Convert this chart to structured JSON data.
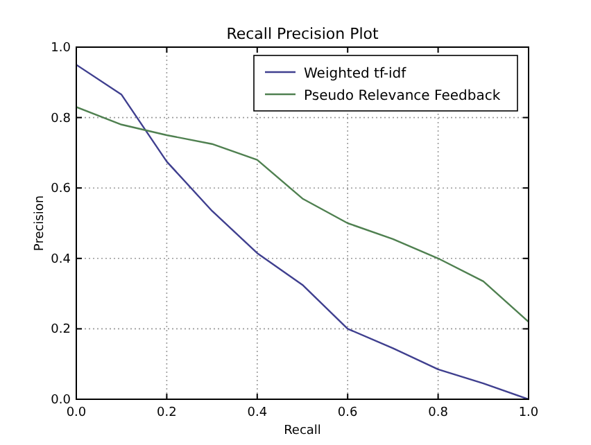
{
  "chart_data": {
    "type": "line",
    "title": "Recall Precision Plot",
    "xlabel": "Recall",
    "ylabel": "Precision",
    "x": [
      0,
      0.1,
      0.2,
      0.3,
      0.4,
      0.5,
      0.6,
      0.7,
      0.8,
      0.9,
      1.0
    ],
    "series": [
      {
        "name": "Weighted tf-idf",
        "color": "#3f3f8f",
        "values": [
          0.95,
          0.865,
          0.675,
          0.535,
          0.415,
          0.325,
          0.2,
          0.145,
          0.085,
          0.045,
          0.0
        ]
      },
      {
        "name": "Pseudo Relevance Feedback",
        "color": "#4f8050",
        "values": [
          0.83,
          0.78,
          0.75,
          0.725,
          0.68,
          0.57,
          0.5,
          0.455,
          0.4,
          0.335,
          0.22
        ]
      }
    ],
    "xlim": [
      0,
      1
    ],
    "ylim": [
      0,
      1
    ],
    "xticks": [
      {
        "value": 0,
        "label": "0.0"
      },
      0.2,
      0.4,
      0.6,
      0.8,
      {
        "value": 1,
        "label": "1.0"
      }
    ],
    "yticks": [
      {
        "value": 0,
        "label": "0.0"
      },
      0.2,
      0.4,
      0.6,
      0.8,
      {
        "value": 1,
        "label": "1.0"
      }
    ],
    "grid": true,
    "legend": "top right",
    "marker": "none",
    "line_style": "solid"
  }
}
